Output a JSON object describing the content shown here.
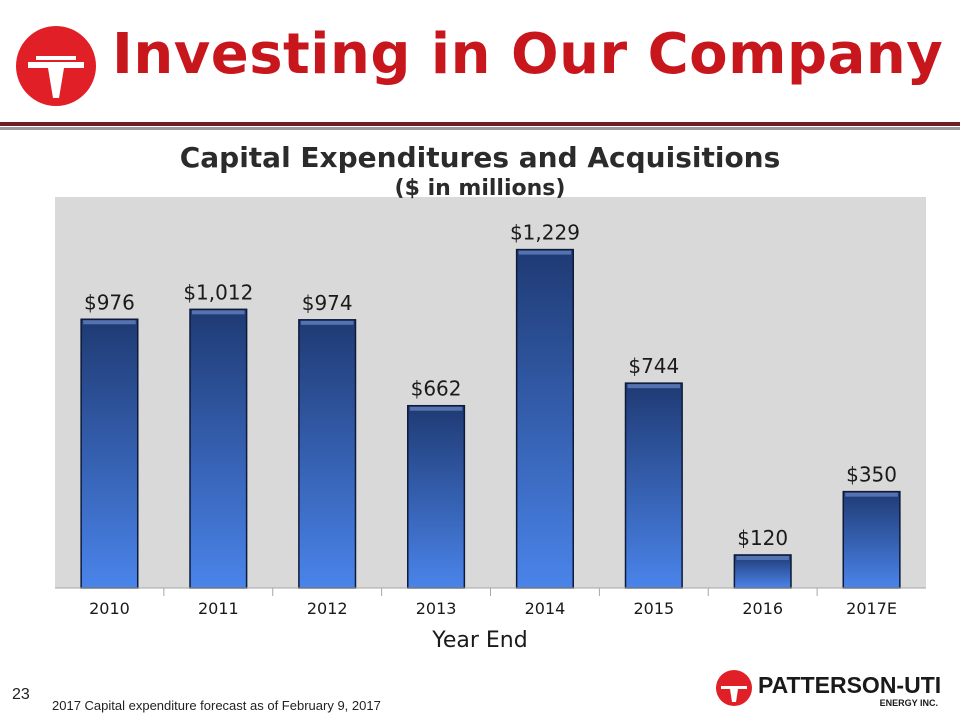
{
  "header": {
    "title": "Investing in Our Company"
  },
  "chart_data": {
    "type": "bar",
    "title": "Capital Expenditures and Acquisitions",
    "subtitle": "($ in millions)",
    "xlabel": "Year End",
    "ylabel": "",
    "categories": [
      "2010",
      "2011",
      "2012",
      "2013",
      "2014",
      "2015",
      "2016",
      "2017E"
    ],
    "values": [
      976,
      1012,
      974,
      662,
      1229,
      744,
      120,
      350
    ],
    "data_labels": [
      "$976",
      "$1,012",
      "$974",
      "$662",
      "$1,229",
      "$744",
      "$120",
      "$350"
    ],
    "ylim": [
      0,
      1420
    ],
    "grid": false,
    "legend": "none",
    "colors": {
      "bar_top": "#1f3a73",
      "bar_bottom": "#4a84ea",
      "plot_background": "#d9d9d9"
    }
  },
  "footer": {
    "slide_number": "23",
    "note": "2017 Capital expenditure forecast as of February 9, 2017",
    "brand_name": "PATTERSON-UTI",
    "brand_sub": "ENERGY INC."
  },
  "colors": {
    "accent": "#c8161d",
    "rule_dark": "#6b1e24",
    "rule_gray": "#9a9a9a"
  }
}
